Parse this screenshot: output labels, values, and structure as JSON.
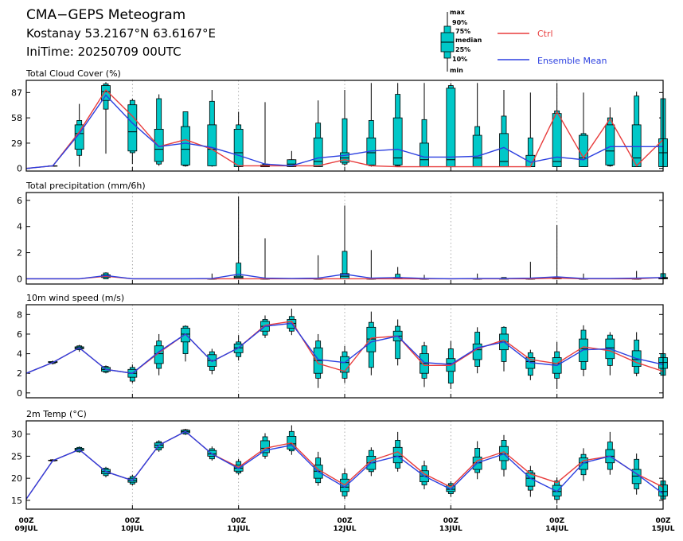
{
  "header": {
    "title": "CMA−GEPS Meteogram",
    "location": "Kostanay 53.2167°N 63.6167°E",
    "init_time": "IniTime: 20250709 00UTC"
  },
  "legend": {
    "box_labels": [
      "max",
      "90%",
      "75%",
      "median",
      "25%",
      "10%",
      "min"
    ],
    "ctrl_label": "Ctrl",
    "mean_label": "Ensemble Mean",
    "ctrl_color": "#e83c3c",
    "mean_color": "#2b3fe0",
    "box_color": "#00c8c8"
  },
  "x_axis": {
    "tick_labels": [
      {
        "hour": "00Z",
        "day": "09JUL"
      },
      {
        "hour": "00Z",
        "day": "10JUL"
      },
      {
        "hour": "00Z",
        "day": "11JUL"
      },
      {
        "hour": "00Z",
        "day": "12JUL"
      },
      {
        "hour": "00Z",
        "day": "13JUL"
      },
      {
        "hour": "00Z",
        "day": "14JUL"
      },
      {
        "hour": "00Z",
        "day": "15JUL"
      }
    ]
  },
  "chart_data": [
    {
      "type": "box",
      "title": "Total Cloud Cover (%)",
      "ylim": [
        -3,
        101
      ],
      "yticks": [
        0,
        29,
        58,
        87
      ],
      "times": [
        "09JUL 00Z",
        "09JUL 06Z",
        "09JUL 12Z",
        "09JUL 18Z",
        "10JUL 00Z",
        "10JUL 06Z",
        "10JUL 12Z",
        "10JUL 18Z",
        "11JUL 00Z",
        "11JUL 06Z",
        "11JUL 12Z",
        "11JUL 18Z",
        "12JUL 00Z",
        "12JUL 06Z",
        "12JUL 12Z",
        "12JUL 18Z",
        "13JUL 00Z",
        "13JUL 06Z",
        "13JUL 12Z",
        "13JUL 18Z",
        "14JUL 00Z",
        "14JUL 06Z",
        "14JUL 12Z",
        "14JUL 18Z",
        "15JUL 00Z"
      ],
      "ctrl": [
        0,
        3,
        42,
        90,
        60,
        25,
        33,
        22,
        3,
        3,
        3,
        3,
        10,
        3,
        2,
        2,
        2,
        2,
        2,
        2,
        65,
        12,
        57,
        3,
        33
      ],
      "mean": [
        0,
        3,
        40,
        84,
        52,
        25,
        29,
        24,
        15,
        5,
        3,
        12,
        15,
        20,
        22,
        13,
        13,
        14,
        24,
        7,
        13,
        10,
        25,
        25,
        25
      ],
      "boxes": [
        null,
        [
          3,
          3,
          3,
          3,
          3,
          3,
          3
        ],
        [
          2,
          15,
          22,
          40,
          50,
          55,
          74
        ],
        [
          17,
          68,
          78,
          88,
          95,
          97,
          99
        ],
        [
          5,
          18,
          20,
          42,
          73,
          78,
          80
        ],
        [
          3,
          5,
          8,
          22,
          45,
          80,
          85
        ],
        [
          2,
          3,
          4,
          22,
          48,
          65,
          65
        ],
        [
          2,
          3,
          3,
          22,
          50,
          77,
          90
        ],
        [
          2,
          2,
          2,
          18,
          45,
          50,
          65
        ],
        [
          2,
          2,
          2,
          2,
          4,
          5,
          76
        ],
        [
          2,
          2,
          2,
          5,
          10,
          10,
          20
        ],
        [
          2,
          2,
          2,
          8,
          35,
          52,
          78
        ],
        [
          3,
          5,
          7,
          12,
          18,
          57,
          90
        ],
        [
          2,
          3,
          4,
          18,
          35,
          55,
          98
        ],
        [
          2,
          3,
          4,
          12,
          58,
          85,
          98
        ],
        [
          2,
          2,
          2,
          10,
          29,
          56,
          98
        ],
        [
          2,
          2,
          2,
          10,
          92,
          95,
          98
        ],
        [
          2,
          2,
          2,
          12,
          38,
          48,
          98
        ],
        [
          2,
          2,
          2,
          8,
          40,
          60,
          90
        ],
        [
          2,
          2,
          2,
          2,
          15,
          35,
          87
        ],
        [
          2,
          2,
          2,
          8,
          63,
          66,
          98
        ],
        [
          2,
          2,
          2,
          12,
          38,
          40,
          87
        ],
        [
          2,
          3,
          4,
          20,
          50,
          58,
          70
        ],
        [
          2,
          2,
          2,
          12,
          50,
          83,
          88
        ],
        [
          2,
          2,
          2,
          18,
          34,
          80,
          86
        ]
      ]
    },
    {
      "type": "box",
      "title": "Total precipitation (mm/6h)",
      "ylim": [
        -0.4,
        6.6
      ],
      "yticks": [
        0,
        2,
        4,
        6
      ],
      "times": [
        "09JUL 00Z",
        "09JUL 06Z",
        "09JUL 12Z",
        "09JUL 18Z",
        "10JUL 00Z",
        "10JUL 06Z",
        "10JUL 12Z",
        "10JUL 18Z",
        "11JUL 00Z",
        "11JUL 06Z",
        "11JUL 12Z",
        "11JUL 18Z",
        "12JUL 00Z",
        "12JUL 06Z",
        "12JUL 12Z",
        "12JUL 18Z",
        "13JUL 00Z",
        "13JUL 06Z",
        "13JUL 12Z",
        "13JUL 18Z",
        "14JUL 00Z",
        "14JUL 06Z",
        "14JUL 12Z",
        "14JUL 18Z",
        "15JUL 00Z"
      ],
      "ctrl": [
        0,
        0,
        0,
        0.2,
        0,
        0,
        0,
        0,
        0,
        0,
        0,
        0,
        0,
        0,
        0,
        0,
        0,
        0,
        0,
        0,
        0.05,
        0,
        0,
        0,
        0.1
      ],
      "mean": [
        0,
        0,
        0,
        0.25,
        0,
        0,
        0,
        0.02,
        0.35,
        0.05,
        0.02,
        0.05,
        0.35,
        0.05,
        0.1,
        0.03,
        0,
        0.02,
        0.02,
        0.05,
        0.15,
        0.02,
        0.02,
        0.05,
        0.1
      ],
      "boxes": [
        null,
        null,
        null,
        [
          0,
          0,
          0.1,
          0.2,
          0.3,
          0.45,
          0.5
        ],
        null,
        null,
        null,
        [
          0,
          0,
          0,
          0,
          0,
          0,
          0.4
        ],
        [
          0,
          0,
          0,
          0.1,
          0.2,
          1.2,
          6.3
        ],
        [
          0,
          0,
          0,
          0,
          0,
          0,
          3.1
        ],
        null,
        [
          0,
          0,
          0,
          0,
          0,
          0,
          1.8
        ],
        [
          0,
          0,
          0,
          0.2,
          0.4,
          2.1,
          5.6
        ],
        [
          0,
          0,
          0,
          0,
          0,
          0,
          2.2
        ],
        [
          0,
          0,
          0,
          0,
          0.05,
          0.35,
          0.9
        ],
        [
          0,
          0,
          0,
          0,
          0,
          0,
          0.3
        ],
        null,
        [
          0,
          0,
          0,
          0,
          0,
          0,
          0.4
        ],
        [
          0,
          0,
          0,
          0,
          0,
          0.1,
          0.1
        ],
        [
          0,
          0,
          0,
          0,
          0,
          0,
          1.3
        ],
        [
          0,
          0,
          0,
          0.05,
          0.1,
          0.1,
          4.1
        ],
        [
          0,
          0,
          0,
          0,
          0,
          0,
          0.4
        ],
        null,
        [
          0,
          0,
          0,
          0,
          0,
          0,
          0.6
        ],
        [
          0,
          0,
          0,
          0.05,
          0.1,
          0.4,
          0.6
        ]
      ]
    },
    {
      "type": "box",
      "title": "10m wind speed (m/s)",
      "ylim": [
        -0.5,
        9
      ],
      "yticks": [
        0,
        2,
        4,
        6,
        8
      ],
      "times": [
        "09JUL 00Z",
        "09JUL 06Z",
        "09JUL 12Z",
        "09JUL 18Z",
        "10JUL 00Z",
        "10JUL 06Z",
        "10JUL 12Z",
        "10JUL 18Z",
        "11JUL 00Z",
        "11JUL 06Z",
        "11JUL 12Z",
        "11JUL 18Z",
        "12JUL 00Z",
        "12JUL 06Z",
        "12JUL 12Z",
        "12JUL 18Z",
        "13JUL 00Z",
        "13JUL 06Z",
        "13JUL 12Z",
        "13JUL 18Z",
        "14JUL 00Z",
        "14JUL 06Z",
        "14JUL 12Z",
        "14JUL 18Z",
        "15JUL 00Z"
      ],
      "ctrl": [
        2.0,
        3.1,
        4.6,
        2.4,
        2.0,
        4.1,
        6.0,
        3.2,
        4.6,
        6.9,
        7.3,
        3.0,
        2.2,
        5.6,
        5.8,
        2.8,
        2.8,
        4.5,
        5.4,
        3.4,
        3.0,
        4.7,
        4.3,
        3.1,
        2.2
      ],
      "mean": [
        2.0,
        3.1,
        4.6,
        2.4,
        2.0,
        4.2,
        6.0,
        3.2,
        4.6,
        6.8,
        7.1,
        3.4,
        3.1,
        5.2,
        5.8,
        3.1,
        2.9,
        4.6,
        5.2,
        3.1,
        2.8,
        4.4,
        4.5,
        3.5,
        2.9
      ],
      "boxes": [
        null,
        [
          2.9,
          3.0,
          3.1,
          3.1,
          3.2,
          3.2,
          3.3
        ],
        [
          4.2,
          4.4,
          4.5,
          4.6,
          4.7,
          4.8,
          4.9
        ],
        [
          2.0,
          2.1,
          2.2,
          2.4,
          2.6,
          2.7,
          2.8
        ],
        [
          1.0,
          1.2,
          1.6,
          2.0,
          2.4,
          2.6,
          2.9
        ],
        [
          1.8,
          2.5,
          3.0,
          4.0,
          4.8,
          5.3,
          6.0
        ],
        [
          3.2,
          4.0,
          5.2,
          6.0,
          6.6,
          6.8,
          6.9
        ],
        [
          1.9,
          2.3,
          2.7,
          3.3,
          3.9,
          4.2,
          4.5
        ],
        [
          3.3,
          3.7,
          4.1,
          4.6,
          5.0,
          5.2,
          5.9
        ],
        [
          5.6,
          5.9,
          6.3,
          6.8,
          7.3,
          7.5,
          7.9
        ],
        [
          5.9,
          6.3,
          6.6,
          7.1,
          7.5,
          7.8,
          8.6
        ],
        [
          0.5,
          1.5,
          2.0,
          3.3,
          4.6,
          5.3,
          6.0
        ],
        [
          1.0,
          1.5,
          2.1,
          3.1,
          3.7,
          4.2,
          4.8
        ],
        [
          1.8,
          2.6,
          4.2,
          5.5,
          6.7,
          7.2,
          8.3
        ],
        [
          2.8,
          3.5,
          5.3,
          5.8,
          6.3,
          6.8,
          7.5
        ],
        [
          0.6,
          1.5,
          2.0,
          3.0,
          4.0,
          4.8,
          5.2
        ],
        [
          0.4,
          1.0,
          2.2,
          3.0,
          3.5,
          4.5,
          5.3
        ],
        [
          2.0,
          2.7,
          3.4,
          4.4,
          5.0,
          6.2,
          6.7
        ],
        [
          2.2,
          3.2,
          4.4,
          5.2,
          6.0,
          6.7,
          6.8
        ],
        [
          1.3,
          1.8,
          2.5,
          3.2,
          3.6,
          4.1,
          4.4
        ],
        [
          0.4,
          1.5,
          2.0,
          3.0,
          3.6,
          4.2,
          5.2
        ],
        [
          1.7,
          2.4,
          3.2,
          4.5,
          5.5,
          6.4,
          6.9
        ],
        [
          1.8,
          2.8,
          3.5,
          4.6,
          5.5,
          5.9,
          6.2
        ],
        [
          1.7,
          2.0,
          2.7,
          3.4,
          4.3,
          5.4,
          6.2
        ],
        [
          1.3,
          1.8,
          2.5,
          3.1,
          3.6,
          4.0,
          4.2
        ]
      ]
    },
    {
      "type": "box",
      "title": "2m Temp (°C)",
      "ylim": [
        13,
        33
      ],
      "yticks": [
        15,
        20,
        25,
        30
      ],
      "times": [
        "09JUL 00Z",
        "09JUL 06Z",
        "09JUL 12Z",
        "09JUL 18Z",
        "10JUL 00Z",
        "10JUL 06Z",
        "10JUL 12Z",
        "10JUL 18Z",
        "11JUL 00Z",
        "11JUL 06Z",
        "11JUL 12Z",
        "11JUL 18Z",
        "12JUL 00Z",
        "12JUL 06Z",
        "12JUL 12Z",
        "12JUL 18Z",
        "13JUL 00Z",
        "13JUL 06Z",
        "13JUL 12Z",
        "13JUL 18Z",
        "14JUL 00Z",
        "14JUL 06Z",
        "14JUL 12Z",
        "14JUL 18Z",
        "15JUL 00Z"
      ],
      "ctrl": [
        15.3,
        24.0,
        26.5,
        21.5,
        19.5,
        27.5,
        30.6,
        25.5,
        22.5,
        26.8,
        28.0,
        22.0,
        18.5,
        24.0,
        26.0,
        21.0,
        18.0,
        24.0,
        26.0,
        21.0,
        19.0,
        24.0,
        25.0,
        21.0,
        18.0
      ],
      "mean": [
        15.3,
        24.0,
        26.5,
        21.5,
        19.5,
        27.5,
        30.6,
        25.5,
        22.2,
        26.3,
        27.5,
        21.5,
        18.0,
        23.5,
        25.0,
        20.5,
        17.5,
        23.5,
        25.5,
        20.0,
        17.0,
        23.5,
        25.0,
        21.0,
        16.5
      ],
      "boxes": [
        null,
        [
          23.8,
          23.9,
          24.0,
          24.0,
          24.1,
          24.2,
          24.3
        ],
        [
          25.8,
          26.0,
          26.3,
          26.5,
          26.8,
          27.0,
          27.2
        ],
        [
          20.2,
          20.6,
          21.0,
          21.5,
          22.0,
          22.3,
          22.6
        ],
        [
          18.4,
          18.7,
          19.1,
          19.5,
          20.0,
          20.4,
          20.8
        ],
        [
          26.0,
          26.4,
          26.9,
          27.5,
          28.0,
          28.3,
          28.6
        ],
        [
          29.8,
          30.0,
          30.3,
          30.6,
          30.9,
          31.0,
          31.2
        ],
        [
          24.0,
          24.4,
          25.0,
          25.5,
          26.3,
          26.7,
          27.2
        ],
        [
          20.8,
          21.2,
          21.6,
          22.3,
          23.0,
          23.8,
          24.4
        ],
        [
          24.4,
          25.0,
          25.8,
          26.8,
          28.5,
          29.4,
          30.2
        ],
        [
          25.3,
          26.2,
          26.6,
          27.8,
          29.5,
          30.6,
          32.0
        ],
        [
          18.3,
          19.0,
          20.0,
          21.6,
          23.0,
          24.6,
          26.0
        ],
        [
          15.3,
          16.0,
          17.0,
          18.0,
          19.8,
          21.0,
          22.2
        ],
        [
          20.5,
          21.5,
          22.0,
          23.5,
          25.0,
          26.3,
          27.0
        ],
        [
          21.5,
          22.3,
          23.5,
          25.0,
          27.0,
          28.6,
          30.5
        ],
        [
          17.5,
          18.5,
          19.2,
          20.5,
          21.7,
          22.8,
          24.0
        ],
        [
          15.8,
          16.5,
          17.0,
          17.5,
          18.4,
          18.8,
          19.3
        ],
        [
          19.8,
          21.3,
          22.0,
          23.5,
          24.8,
          26.8,
          28.4
        ],
        [
          20.4,
          22.0,
          24.0,
          25.5,
          27.2,
          28.6,
          29.8
        ],
        [
          15.8,
          17.3,
          18.2,
          20.0,
          21.2,
          21.7,
          22.8
        ],
        [
          14.3,
          15.2,
          16.0,
          17.0,
          18.4,
          19.4,
          20.2
        ],
        [
          19.4,
          20.8,
          22.0,
          23.5,
          24.6,
          25.4,
          26.8
        ],
        [
          20.8,
          22.0,
          23.5,
          25.0,
          26.5,
          28.2,
          30.5
        ],
        [
          16.3,
          17.6,
          18.8,
          20.5,
          22.0,
          24.3,
          25.6
        ],
        [
          14.4,
          15.3,
          16.0,
          17.0,
          18.5,
          19.4,
          20.3
        ]
      ]
    }
  ]
}
